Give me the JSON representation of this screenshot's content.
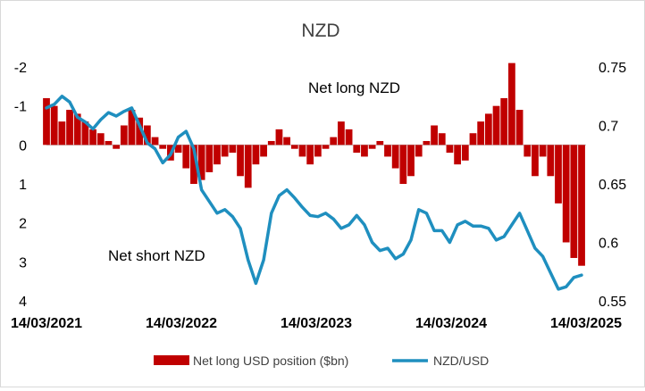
{
  "chart_data": {
    "type": "bar+line",
    "title": "NZD",
    "annotations": [
      "Net long NZD",
      "Net short NZD"
    ],
    "x_ticks": [
      "14/03/2021",
      "14/03/2022",
      "14/03/2023",
      "14/03/2024",
      "14/03/2025"
    ],
    "x_range": [
      "2021-03-14",
      "2025-03-14"
    ],
    "left_axis": {
      "ticks": [
        "-2",
        "-1",
        "0",
        "1",
        "2",
        "3",
        "4"
      ],
      "range": [
        -2,
        4
      ],
      "reversed": true
    },
    "right_axis": {
      "ticks": [
        "0.75",
        "0.7",
        "0.65",
        "0.6",
        "0.55"
      ],
      "range": [
        0.55,
        0.75
      ]
    },
    "legend": {
      "position": "bottom",
      "entries": [
        "Net long USD position ($bn)",
        "NZD/USD"
      ]
    },
    "colors": {
      "bars": "#c00000",
      "line": "#1f8fbf"
    },
    "series": [
      {
        "name": "Net long USD position ($bn)",
        "kind": "bar",
        "axis": "left",
        "x": [
          "2021-03-14",
          "2021-04-04",
          "2021-04-25",
          "2021-05-16",
          "2021-06-06",
          "2021-06-27",
          "2021-07-18",
          "2021-08-08",
          "2021-08-29",
          "2021-09-19",
          "2021-10-10",
          "2021-10-31",
          "2021-11-21",
          "2021-12-12",
          "2022-01-02",
          "2022-01-23",
          "2022-02-13",
          "2022-03-06",
          "2022-03-27",
          "2022-04-17",
          "2022-05-08",
          "2022-05-29",
          "2022-06-19",
          "2022-07-10",
          "2022-07-31",
          "2022-08-21",
          "2022-09-11",
          "2022-10-02",
          "2022-10-23",
          "2022-11-13",
          "2022-12-04",
          "2022-12-25",
          "2023-01-15",
          "2023-02-05",
          "2023-02-26",
          "2023-03-19",
          "2023-04-09",
          "2023-04-30",
          "2023-05-21",
          "2023-06-11",
          "2023-07-02",
          "2023-07-23",
          "2023-08-13",
          "2023-09-03",
          "2023-09-24",
          "2023-10-15",
          "2023-11-05",
          "2023-11-26",
          "2023-12-17",
          "2024-01-07",
          "2024-01-28",
          "2024-02-18",
          "2024-03-10",
          "2024-03-31",
          "2024-04-21",
          "2024-05-12",
          "2024-06-02",
          "2024-06-23",
          "2024-07-14",
          "2024-08-04",
          "2024-08-25",
          "2024-09-15",
          "2024-10-06",
          "2024-10-27",
          "2024-11-17",
          "2024-12-08",
          "2024-12-29",
          "2025-01-19",
          "2025-02-09",
          "2025-03-02"
        ],
        "values": [
          -1.2,
          -1.0,
          -0.6,
          -0.9,
          -0.8,
          -0.6,
          -0.4,
          -0.3,
          -0.1,
          0.1,
          -0.5,
          -0.9,
          -0.7,
          -0.5,
          -0.2,
          0.1,
          0.4,
          0.2,
          0.6,
          1.0,
          0.9,
          0.7,
          0.5,
          0.3,
          0.2,
          0.8,
          1.1,
          0.5,
          0.3,
          -0.1,
          -0.4,
          -0.2,
          0.1,
          0.3,
          0.5,
          0.3,
          0.1,
          -0.2,
          -0.6,
          -0.4,
          0.2,
          0.3,
          0.1,
          -0.1,
          0.3,
          0.6,
          1.0,
          0.8,
          0.3,
          -0.1,
          -0.5,
          -0.3,
          0.2,
          0.5,
          0.4,
          -0.3,
          -0.6,
          -0.8,
          -1.0,
          -1.2,
          -2.1,
          -0.9,
          0.3,
          0.8,
          0.3,
          0.8,
          1.5,
          2.5,
          2.9,
          3.1
        ]
      },
      {
        "name": "NZD/USD",
        "kind": "line",
        "axis": "right",
        "x": [
          "2021-03-14",
          "2021-04-04",
          "2021-04-25",
          "2021-05-16",
          "2021-06-06",
          "2021-06-27",
          "2021-07-18",
          "2021-08-08",
          "2021-08-29",
          "2021-09-19",
          "2021-10-10",
          "2021-10-31",
          "2021-11-21",
          "2021-12-12",
          "2022-01-02",
          "2022-01-23",
          "2022-02-13",
          "2022-03-06",
          "2022-03-27",
          "2022-04-17",
          "2022-05-08",
          "2022-05-29",
          "2022-06-19",
          "2022-07-10",
          "2022-07-31",
          "2022-08-21",
          "2022-09-11",
          "2022-10-02",
          "2022-10-23",
          "2022-11-13",
          "2022-12-04",
          "2022-12-25",
          "2023-01-15",
          "2023-02-05",
          "2023-02-26",
          "2023-03-19",
          "2023-04-09",
          "2023-04-30",
          "2023-05-21",
          "2023-06-11",
          "2023-07-02",
          "2023-07-23",
          "2023-08-13",
          "2023-09-03",
          "2023-09-24",
          "2023-10-15",
          "2023-11-05",
          "2023-11-26",
          "2023-12-17",
          "2024-01-07",
          "2024-01-28",
          "2024-02-18",
          "2024-03-10",
          "2024-03-31",
          "2024-04-21",
          "2024-05-12",
          "2024-06-02",
          "2024-06-23",
          "2024-07-14",
          "2024-08-04",
          "2024-08-25",
          "2024-09-15",
          "2024-10-06",
          "2024-10-27",
          "2024-11-17",
          "2024-12-08",
          "2024-12-29",
          "2025-01-19",
          "2025-02-09",
          "2025-03-02"
        ],
        "values": [
          0.715,
          0.718,
          0.725,
          0.72,
          0.707,
          0.703,
          0.697,
          0.705,
          0.711,
          0.708,
          0.712,
          0.715,
          0.7,
          0.685,
          0.68,
          0.668,
          0.675,
          0.69,
          0.695,
          0.68,
          0.645,
          0.635,
          0.625,
          0.628,
          0.622,
          0.612,
          0.585,
          0.565,
          0.585,
          0.625,
          0.64,
          0.645,
          0.638,
          0.63,
          0.623,
          0.622,
          0.625,
          0.62,
          0.612,
          0.615,
          0.623,
          0.615,
          0.6,
          0.593,
          0.595,
          0.586,
          0.59,
          0.602,
          0.628,
          0.625,
          0.61,
          0.61,
          0.6,
          0.615,
          0.618,
          0.614,
          0.614,
          0.612,
          0.602,
          0.605,
          0.615,
          0.625,
          0.61,
          0.595,
          0.588,
          0.574,
          0.56,
          0.562,
          0.57,
          0.572
        ]
      }
    ]
  }
}
